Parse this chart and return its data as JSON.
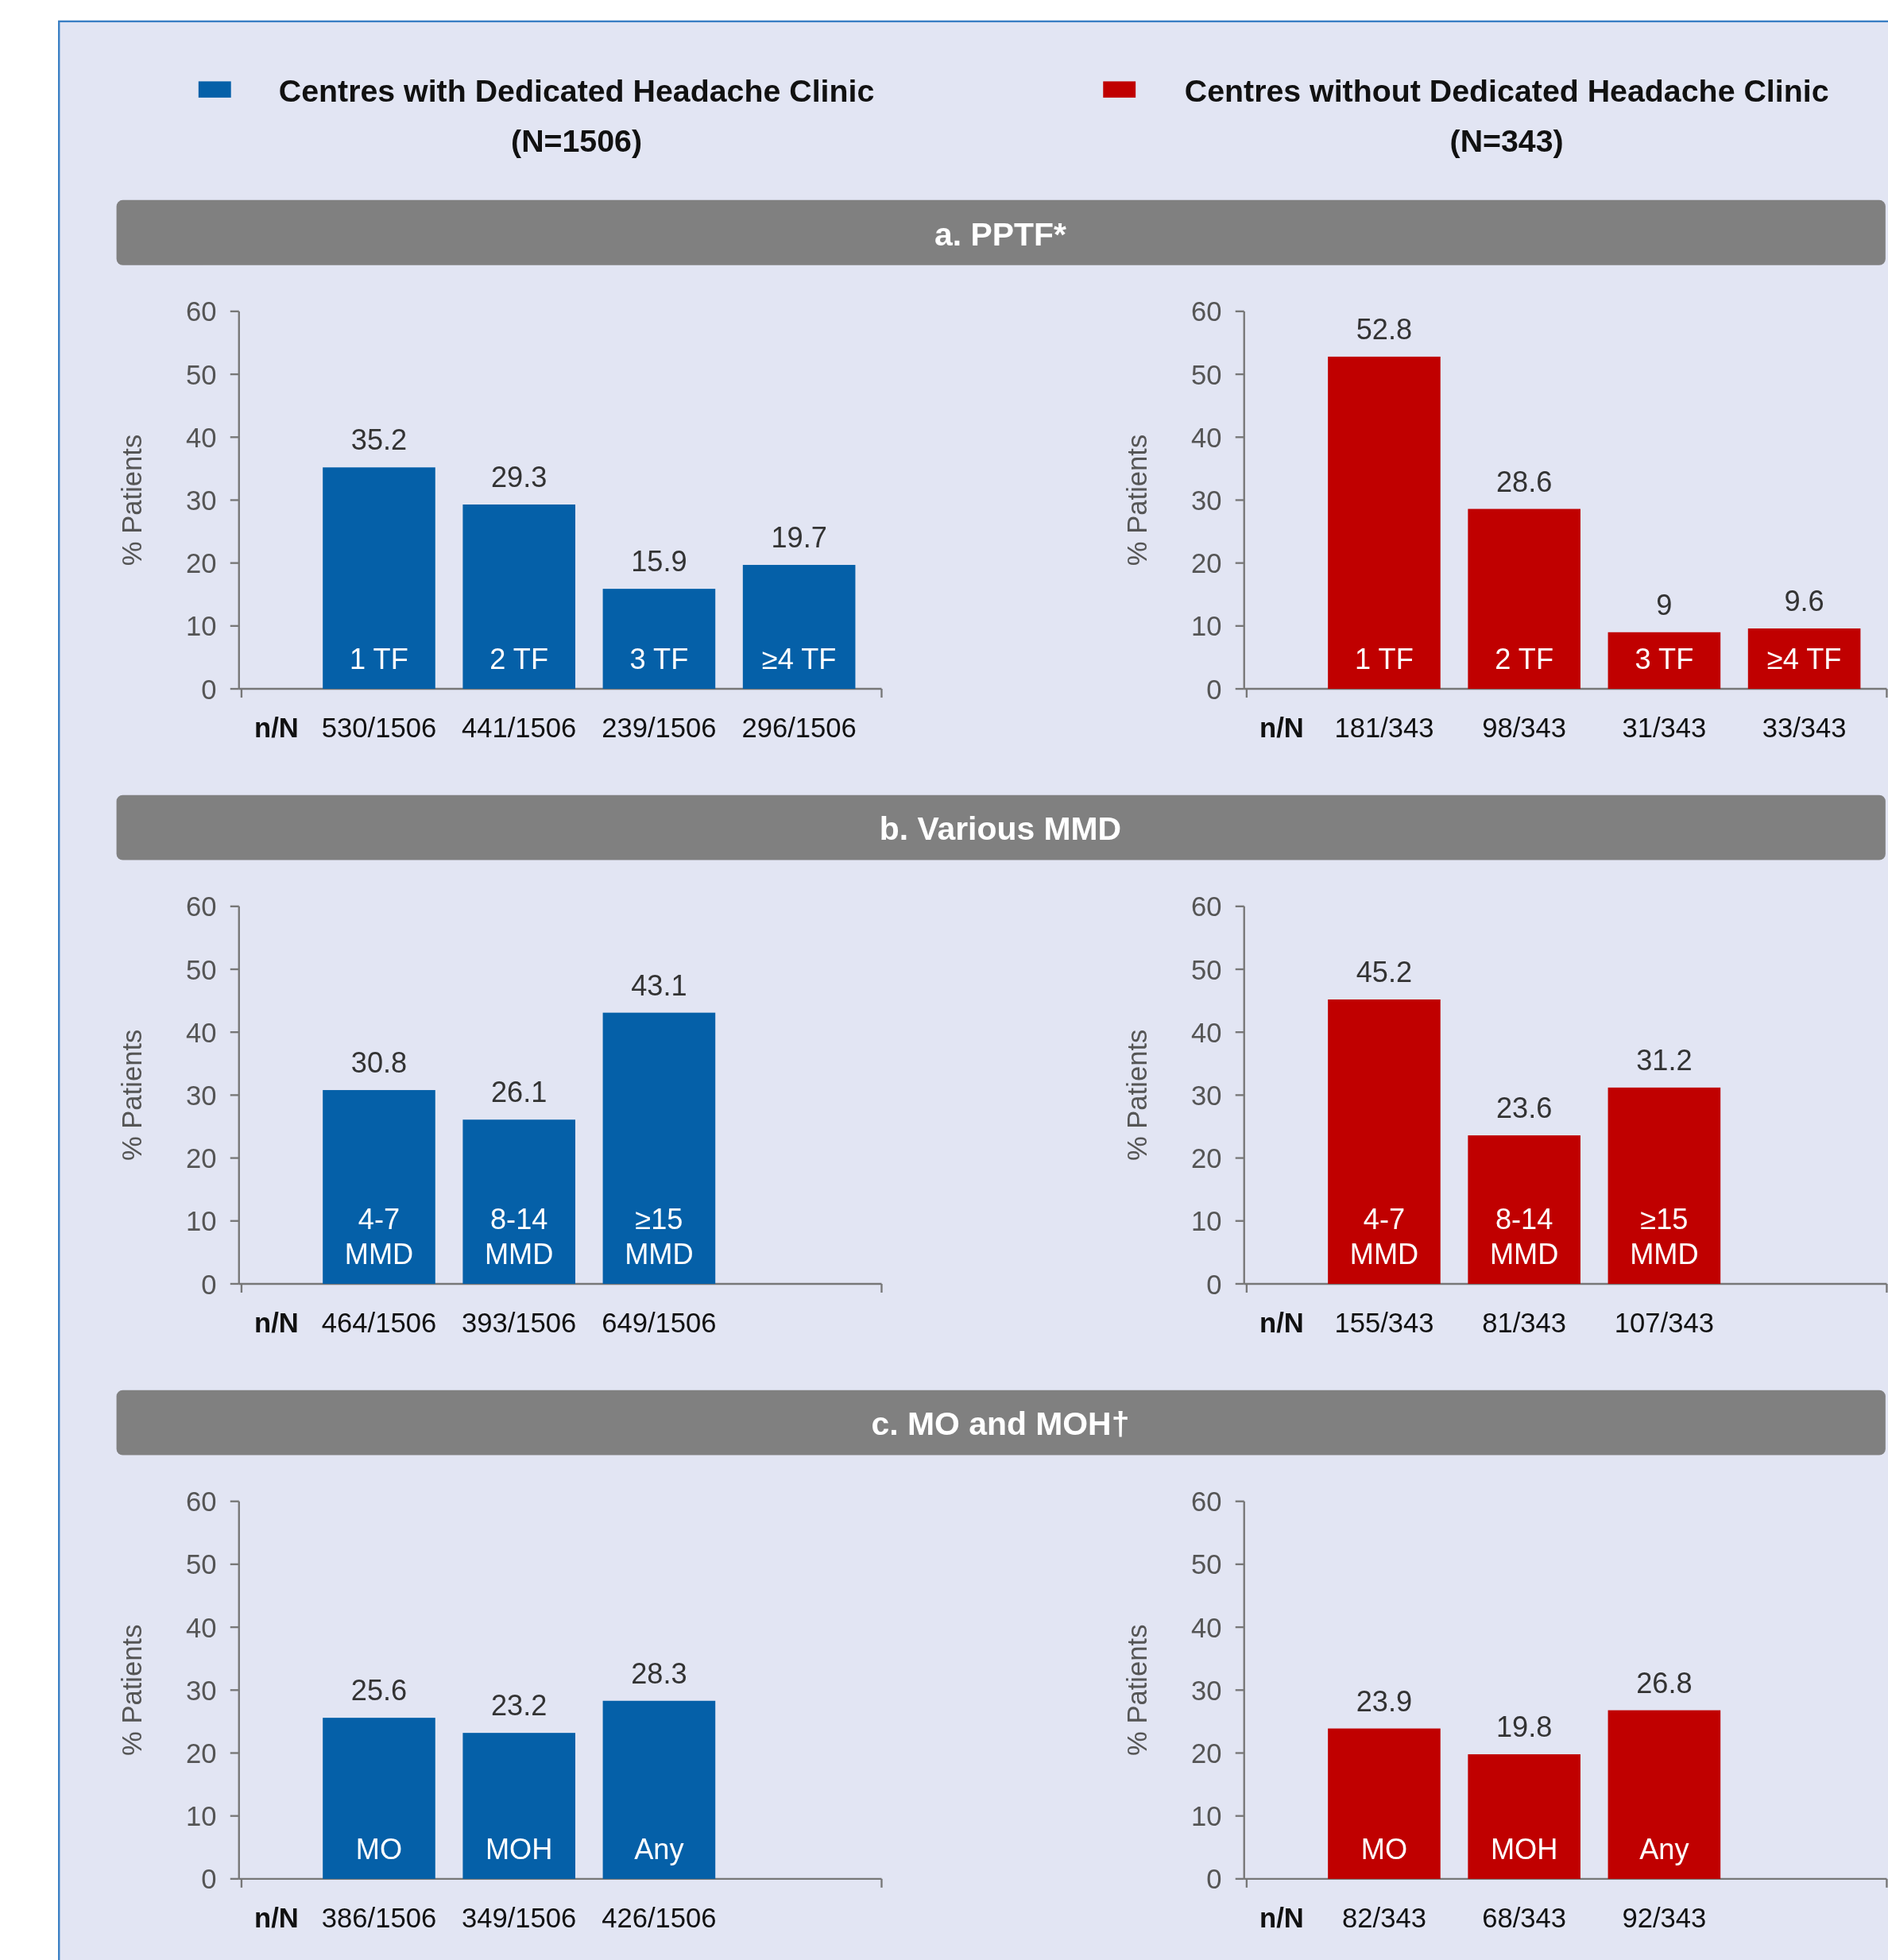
{
  "chart_data": [
    {
      "type": "other",
      "title": "a. PPTF*"
    },
    {
      "type": "bar",
      "ylabel": "% Patients",
      "legend": "top",
      "categories": [
        "1 TF",
        "2 TF",
        "3 TF",
        "≥4 TF"
      ],
      "series": [
        {
          "name": "Centres with Dedicated Headache Clinic (N=1506)",
          "color": "#0560a8",
          "values": [
            35.2,
            29.3,
            15.9,
            19.7
          ]
        }
      ],
      "ylim": [
        0,
        60
      ],
      "yticks": [
        0,
        10,
        20,
        30,
        40,
        50,
        60
      ],
      "data_labels": true,
      "annotations": [
        "n/N",
        "530/1506",
        "441/1506",
        "239/1506",
        "296/1506"
      ]
    },
    {
      "type": "bar",
      "ylabel": "% Patients",
      "legend": "top",
      "categories": [
        "1 TF",
        "2 TF",
        "3 TF",
        "≥4 TF"
      ],
      "series": [
        {
          "name": "Centres without Dedicated Headache Clinic (N=343)",
          "color": "#c00000",
          "values": [
            52.8,
            28.6,
            9,
            9.6
          ]
        }
      ],
      "ylim": [
        0,
        60
      ],
      "yticks": [
        0,
        10,
        20,
        30,
        40,
        50,
        60
      ],
      "data_labels": true,
      "annotations": [
        "n/N",
        "181/343",
        "98/343",
        "31/343",
        "33/343"
      ]
    },
    {
      "type": "other",
      "title": "b. Various MMD"
    },
    {
      "type": "bar",
      "ylabel": "% Patients",
      "categories": [
        "4-7 MMD",
        "8-14 MMD",
        "≥15 MMD"
      ],
      "series": [
        {
          "color": "#0560a8",
          "values": [
            30.8,
            26.1,
            43.1
          ]
        }
      ],
      "ylim": [
        0,
        60
      ],
      "yticks": [
        0,
        10,
        20,
        30,
        40,
        50,
        60
      ],
      "data_labels": true,
      "annotations": [
        "n/N",
        "464/1506",
        "393/1506",
        "649/1506"
      ]
    },
    {
      "type": "bar",
      "ylabel": "% Patients",
      "categories": [
        "4-7 MMD",
        "8-14 MMD",
        "≥15 MMD"
      ],
      "series": [
        {
          "color": "#c00000",
          "values": [
            45.2,
            23.6,
            31.2
          ]
        }
      ],
      "ylim": [
        0,
        60
      ],
      "yticks": [
        0,
        10,
        20,
        30,
        40,
        50,
        60
      ],
      "data_labels": true,
      "annotations": [
        "n/N",
        "155/343",
        "81/343",
        "107/343"
      ]
    },
    {
      "type": "other",
      "title": "c. MO and MOH†"
    },
    {
      "type": "bar",
      "ylabel": "% Patients",
      "categories": [
        "MO",
        "MOH",
        "Any"
      ],
      "series": [
        {
          "color": "#0560a8",
          "values": [
            25.6,
            23.2,
            28.3
          ]
        }
      ],
      "ylim": [
        0,
        60
      ],
      "yticks": [
        0,
        10,
        20,
        30,
        40,
        50,
        60
      ],
      "data_labels": true,
      "annotations": [
        "n/N",
        "386/1506",
        "349/1506",
        "426/1506"
      ]
    },
    {
      "type": "bar",
      "ylabel": "% Patients",
      "categories": [
        "MO",
        "MOH",
        "Any"
      ],
      "series": [
        {
          "color": "#c00000",
          "values": [
            23.9,
            19.8,
            26.8
          ]
        }
      ],
      "ylim": [
        0,
        60
      ],
      "yticks": [
        0,
        10,
        20,
        30,
        40,
        50,
        60
      ],
      "data_labels": true,
      "annotations": [
        "n/N",
        "82/343",
        "68/343",
        "92/343"
      ]
    }
  ]
}
